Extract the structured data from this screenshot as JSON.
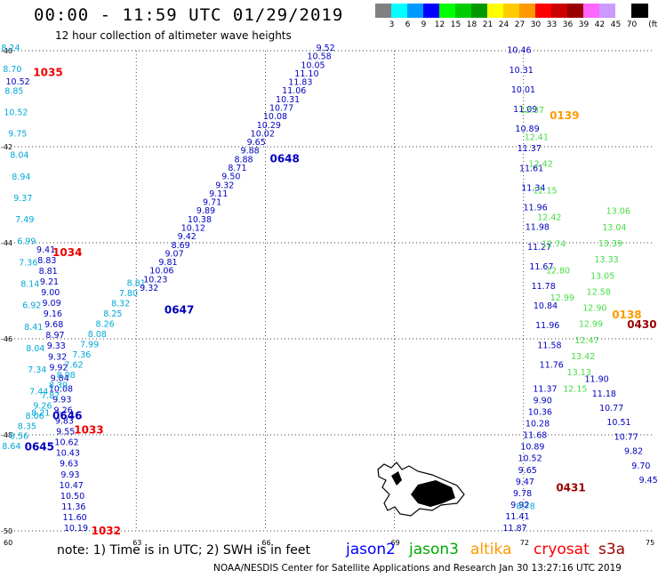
{
  "header": {
    "title": "00:00 - 11:59 UTC 01/29/2019",
    "subtitle": "12 hour collection of altimeter wave heights"
  },
  "legend": {
    "unit_label": "(ft)",
    "bins": [
      {
        "label": "3",
        "color": "#808080"
      },
      {
        "label": "6",
        "color": "#00ffff"
      },
      {
        "label": "9",
        "color": "#0099ff"
      },
      {
        "label": "12",
        "color": "#0000ff"
      },
      {
        "label": "15",
        "color": "#00ff00"
      },
      {
        "label": "18",
        "color": "#00cc00"
      },
      {
        "label": "21",
        "color": "#009900"
      },
      {
        "label": "24",
        "color": "#ffff00"
      },
      {
        "label": "27",
        "color": "#ffcc00"
      },
      {
        "label": "30",
        "color": "#ff9900"
      },
      {
        "label": "33",
        "color": "#ff0000"
      },
      {
        "label": "36",
        "color": "#cc0000"
      },
      {
        "label": "39",
        "color": "#990000"
      },
      {
        "label": "42",
        "color": "#ff66ff"
      },
      {
        "label": "45",
        "color": "#cc99ff"
      },
      {
        "label": "70",
        "color": "#ffffff"
      },
      {
        "label": "",
        "color": "#000000"
      }
    ]
  },
  "footer": {
    "note": "note:  1) Time is in UTC; 2) SWH is in feet",
    "satellites": [
      {
        "name": "jason2",
        "color": "#0000ff"
      },
      {
        "name": "jason3",
        "color": "#00aa00"
      },
      {
        "name": "altika",
        "color": "#ff9900"
      },
      {
        "name": "cryosat",
        "color": "#ff0000"
      },
      {
        "name": "s3a",
        "color": "#990000"
      }
    ],
    "credit": "NOAA/NESDIS Center for Satellite Applications and Research   Jan 30 13:27:16 UTC 2019"
  },
  "map": {
    "lon_ticks": [
      "60",
      "63",
      "66",
      "69",
      "72",
      "75"
    ],
    "lat_ticks": [
      "-40",
      "-42",
      "-44",
      "-46",
      "-48",
      "-50"
    ],
    "colors": {
      "cyan": "#00a8d8",
      "blue": "#0000c0",
      "green": "#44dd44",
      "orange": "#ff9900",
      "red": "#ee0000",
      "dred": "#990000"
    },
    "time_tags": [
      {
        "text": "1035",
        "c": "red",
        "lon": 60.95,
        "lat": -40.45
      },
      {
        "text": "1034",
        "c": "red",
        "lon": 61.4,
        "lat": -44.2
      },
      {
        "text": "1033",
        "c": "red",
        "lon": 61.9,
        "lat": -47.9
      },
      {
        "text": "1032",
        "c": "red",
        "lon": 62.3,
        "lat": -50.0
      },
      {
        "text": "0648",
        "c": "blue",
        "lon": 66.45,
        "lat": -42.25
      },
      {
        "text": "0647",
        "c": "blue",
        "lon": 64.0,
        "lat": -45.4
      },
      {
        "text": "0646",
        "c": "blue",
        "lon": 61.4,
        "lat": -47.6
      },
      {
        "text": "0645",
        "c": "blue",
        "lon": 60.75,
        "lat": -48.25
      },
      {
        "text": "0139",
        "c": "orange",
        "lon": 72.95,
        "lat": -41.35
      },
      {
        "text": "0138",
        "c": "orange",
        "lon": 74.4,
        "lat": -45.5
      },
      {
        "text": "0431",
        "c": "dred",
        "lon": 73.1,
        "lat": -49.1
      },
      {
        "text": "0430",
        "c": "dred",
        "lon": 74.75,
        "lat": -45.7
      }
    ],
    "tracks": [
      {
        "c": "cyan",
        "lon0": 60.08,
        "lat0": -40.0,
        "lon1": 60.78,
        "lat1": -47.6,
        "values": [
          "8.24",
          "8.70",
          "8.85",
          "10.52",
          "9.75",
          "8.04",
          "8.94",
          "9.37",
          "7.49",
          "6.99",
          "7.36",
          "8.14",
          "6.92",
          "8.41",
          "8.04",
          "7.34",
          "7.44",
          "8.21"
        ],
        "t0": 0,
        "t1": 1
      },
      {
        "c": "blue",
        "lon0": 60.25,
        "lat0": -40.7,
        "lon1": 60.4,
        "lat1": -40.9,
        "values": [
          "10.52"
        ],
        "t0": 0,
        "t1": 1
      },
      {
        "c": "blue",
        "lon0": 60.9,
        "lat0": -44.2,
        "lon1": 61.6,
        "lat1": -50.0,
        "values": [
          "9.41",
          "8.83",
          "8.81",
          "9.21",
          "9.00",
          "9.09",
          "9.16",
          "9.68",
          "8.97",
          "9.33",
          "9.32",
          "9.92",
          "9.84",
          "10.08",
          "9.93",
          "9.26",
          "9.83",
          "9.55",
          "10.62",
          "10.43",
          "9.63",
          "9.93",
          "10.47",
          "10.50",
          "11.36",
          "11.60",
          "10.19"
        ],
        "t0": 0,
        "t1": 1
      },
      {
        "c": "cyan",
        "lon0": 60.1,
        "lat0": -48.3,
        "lon1": 63.0,
        "lat1": -44.9,
        "values": [
          "8.64",
          "8.56",
          "8.35",
          "8.06",
          "9.26",
          "7.87",
          "8.39",
          "8.08",
          "7.62",
          "7.36",
          "7.99",
          "8.08",
          "8.26",
          "8.25",
          "8.32",
          "7.80",
          "8.81"
        ],
        "t0": 0,
        "t1": 1
      },
      {
        "c": "blue",
        "lon0": 63.3,
        "lat0": -45.0,
        "lon1": 67.4,
        "lat1": -40.0,
        "values": [
          "9.32",
          "10.23",
          "10.06",
          "9.81",
          "9.07",
          "8.69",
          "9.42",
          "10.12",
          "10.38",
          "9.89",
          "9.71",
          "9.11",
          "9.32",
          "9.50",
          "8.71",
          "8.88",
          "9.88",
          "9.65",
          "10.02",
          "10.29",
          "10.08",
          "10.77",
          "10.31",
          "11.06",
          "11.83",
          "11.10",
          "10.05",
          "10.58",
          "9.52"
        ],
        "t0": 0,
        "t1": 1
      },
      {
        "c": "blue",
        "lon0": 71.9,
        "lat0": -40.05,
        "lon1": 72.65,
        "lat1": -46.6,
        "values": [
          "10.46",
          "10.31",
          "10.01",
          "11.09",
          "10.89",
          "11.37",
          "11.61",
          "11.34",
          "11.96",
          "11.98",
          "11.27",
          "11.67",
          "11.78",
          "10.84",
          "11.96",
          "11.58",
          "11.76"
        ],
        "t0": 0,
        "t1": 1
      },
      {
        "c": "green",
        "lon0": 72.2,
        "lat0": -41.3,
        "lon1": 72.9,
        "lat1": -45.2,
        "values": [
          "12.37",
          "12.41",
          "12.42",
          "12.15",
          "12.42",
          "12.74",
          "12.80",
          "12.99"
        ],
        "t0": 0,
        "t1": 1
      },
      {
        "c": "green",
        "lon0": 74.2,
        "lat0": -43.4,
        "lon1": 73.2,
        "lat1": -47.1,
        "values": [
          "13.06",
          "13.04",
          "13.39",
          "13.33",
          "13.05",
          "12.58",
          "12.90",
          "12.99",
          "12.47",
          "13.42",
          "13.13",
          "12.15"
        ],
        "t0": 0,
        "t1": 1
      },
      {
        "c": "blue",
        "lon0": 73.7,
        "lat0": -46.9,
        "lon1": 74.9,
        "lat1": -49.0,
        "values": [
          "11.90",
          "11.18",
          "10.77",
          "10.51",
          "10.77",
          "9.82",
          "9.70",
          "9.45"
        ],
        "t0": 0,
        "t1": 1
      },
      {
        "c": "blue",
        "lon0": 72.5,
        "lat0": -47.1,
        "lon1": 71.8,
        "lat1": -50.0,
        "values": [
          "11.37",
          "9.90",
          "10.36",
          "10.28",
          "11.68",
          "10.89",
          "10.52",
          "9.65",
          "9.47",
          "9.78",
          "9.92",
          "11.41",
          "11.87"
        ],
        "t0": 0,
        "t1": 1
      },
      {
        "c": "cyan",
        "lon0": 72.05,
        "lat0": -49.55,
        "lon1": 72.05,
        "lat1": -49.55,
        "values": [
          "8.78"
        ],
        "t0": 0,
        "t1": 1
      }
    ]
  }
}
